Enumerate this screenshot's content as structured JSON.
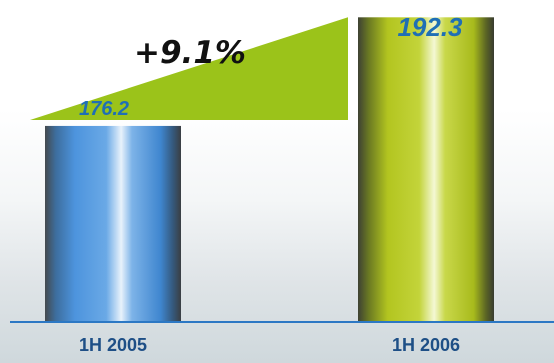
{
  "chart_data": {
    "type": "bar",
    "categories": [
      "1H 2005",
      "1H 2006"
    ],
    "values": [
      176.2,
      192.3
    ],
    "value_labels": [
      "176.2",
      "192.3"
    ],
    "annotation": "+9.1%",
    "title": "",
    "xlabel": "",
    "ylabel": "",
    "grid": false,
    "bar_colors": [
      "#4a8fd6",
      "#b5c91e"
    ],
    "growth_wedge_color": "#9bc31a",
    "axis_color": "#2c78c4",
    "value_label_color": "#1f6fb5",
    "tick_label_color": "#1e4f86"
  }
}
